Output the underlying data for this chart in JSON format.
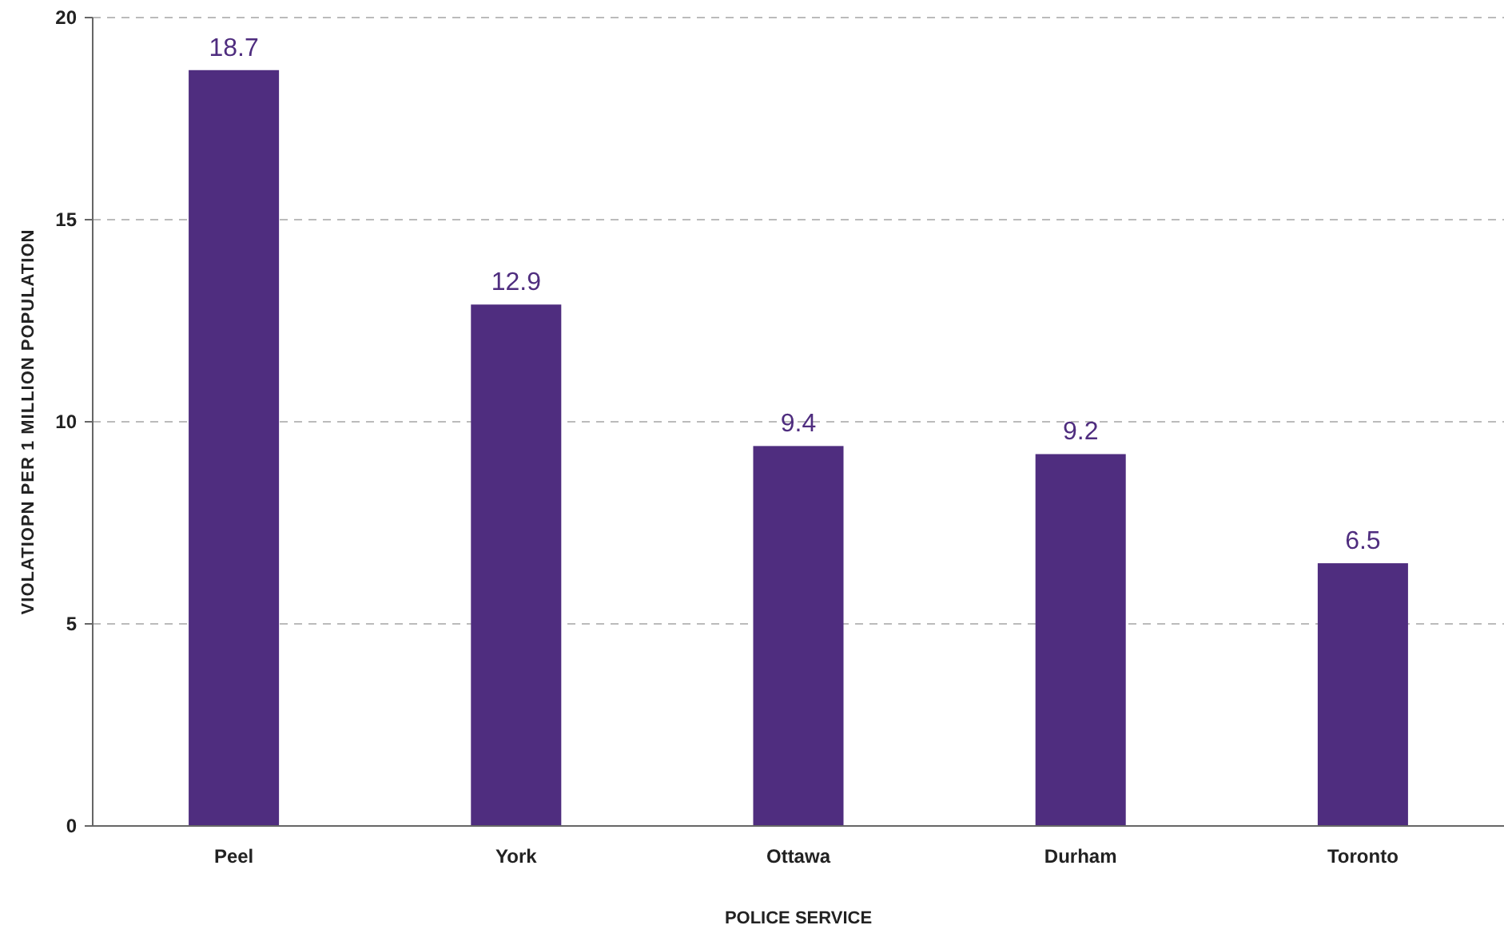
{
  "chart_data": {
    "type": "bar",
    "xlabel": "POLICE SERVICE",
    "ylabel": "VIOLATIOPN PER 1 MILLION POPULATION",
    "categories": [
      "Peel",
      "York",
      "Ottawa",
      "Durham",
      "Toronto"
    ],
    "values": [
      18.7,
      12.9,
      9.4,
      9.2,
      6.5
    ],
    "color": "#4f2d7f",
    "ylim": [
      0,
      20
    ],
    "yticks": [
      0,
      5,
      10,
      15,
      20
    ],
    "grid": "y",
    "data_labels": true
  }
}
